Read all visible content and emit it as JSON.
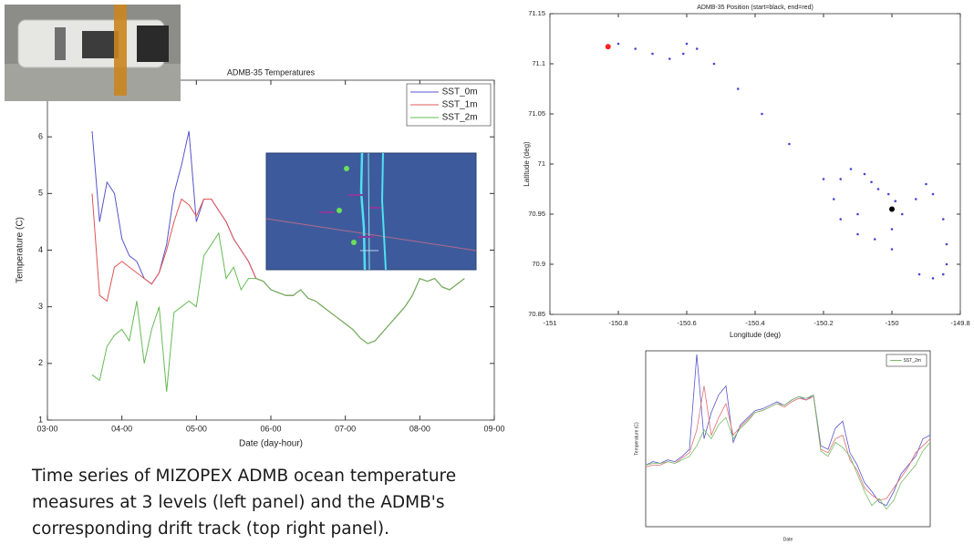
{
  "chart_data": [
    {
      "type": "line",
      "title": "ADMB-35 Temperatures",
      "xlabel": "Date (day-hour)",
      "ylabel": "Temperature (C)",
      "x": [
        3.6,
        3.7,
        3.8,
        3.9,
        4.0,
        4.1,
        4.2,
        4.3,
        4.4,
        4.5,
        4.6,
        4.7,
        4.8,
        4.9,
        5.0,
        5.1,
        5.2,
        5.3,
        5.4,
        5.5,
        5.6,
        5.7,
        5.8,
        5.9,
        6.0,
        6.1,
        6.2,
        6.3,
        6.4,
        6.5,
        6.6,
        6.7,
        6.8,
        6.9,
        7.0,
        7.1,
        7.2,
        7.3,
        7.4,
        7.5,
        7.6,
        7.7,
        7.8,
        7.9,
        8.0,
        8.1,
        8.2,
        8.3,
        8.4,
        8.5,
        8.6
      ],
      "series": [
        {
          "name": "SST_0m",
          "color": "#5555cc",
          "values": [
            6.1,
            4.5,
            5.2,
            5.0,
            4.2,
            3.9,
            3.8,
            3.5,
            3.4,
            3.6,
            4.1,
            5.0,
            5.5,
            6.1,
            4.5,
            4.9,
            4.9,
            4.7,
            4.5,
            4.2,
            4.0,
            3.8,
            3.5,
            3.45,
            3.3,
            3.25,
            3.2,
            3.2,
            3.3,
            3.15,
            3.1,
            3.0,
            2.9,
            2.8,
            2.7,
            2.6,
            2.45,
            2.35,
            2.4,
            2.55,
            2.7,
            2.85,
            3.0,
            3.2,
            3.5,
            3.45,
            3.5,
            3.35,
            3.3,
            3.4,
            3.5
          ]
        },
        {
          "name": "SST_1m",
          "color": "#e05555",
          "values": [
            5.0,
            3.2,
            3.1,
            3.7,
            3.8,
            3.7,
            3.6,
            3.5,
            3.4,
            3.6,
            4.0,
            4.5,
            4.9,
            4.8,
            4.6,
            4.9,
            4.9,
            4.7,
            4.5,
            4.2,
            4.0,
            3.8,
            3.5,
            3.45,
            3.3,
            3.25,
            3.2,
            3.2,
            3.3,
            3.15,
            3.1,
            3.0,
            2.9,
            2.8,
            2.7,
            2.6,
            2.45,
            2.35,
            2.4,
            2.55,
            2.7,
            2.85,
            3.0,
            3.2,
            3.5,
            3.45,
            3.5,
            3.35,
            3.3,
            3.4,
            3.5
          ]
        },
        {
          "name": "SST_2m",
          "color": "#66bb55",
          "values": [
            1.8,
            1.7,
            2.3,
            2.5,
            2.6,
            2.4,
            3.1,
            2.0,
            2.6,
            3.0,
            1.5,
            2.9,
            3.0,
            3.1,
            3.0,
            3.9,
            4.1,
            4.3,
            3.5,
            3.7,
            3.3,
            3.5,
            3.5,
            3.45,
            3.3,
            3.25,
            3.2,
            3.2,
            3.3,
            3.15,
            3.1,
            3.0,
            2.9,
            2.8,
            2.7,
            2.6,
            2.45,
            2.35,
            2.4,
            2.55,
            2.7,
            2.85,
            3.0,
            3.2,
            3.5,
            3.45,
            3.5,
            3.35,
            3.3,
            3.4,
            3.5
          ]
        }
      ],
      "xlim": [
        3,
        9
      ],
      "xticks": [
        {
          "value": 3,
          "label": "03-00"
        },
        {
          "value": 4,
          "label": "04-00"
        },
        {
          "value": 5,
          "label": "05-00"
        },
        {
          "value": 6,
          "label": "06-00"
        },
        {
          "value": 7,
          "label": "07-00"
        },
        {
          "value": 8,
          "label": "08-00"
        },
        {
          "value": 9,
          "label": "09-00"
        }
      ],
      "ylim": [
        1,
        7
      ],
      "yticks": [
        1,
        2,
        3,
        4,
        5,
        6
      ],
      "legend": "upper right"
    },
    {
      "type": "scatter",
      "title": "ADMB-35 Position (start=black, end=red)",
      "xlabel": "Longitude (deg)",
      "ylabel": "Latitude (deg)",
      "x": [
        -150.0,
        -149.99,
        -150.01,
        -150.04,
        -150.06,
        -150.08,
        -150.12,
        -150.15,
        -150.17,
        -150.15,
        -150.1,
        -150.05,
        -150.0,
        -149.97,
        -149.93,
        -149.9,
        -149.88,
        -149.85,
        -149.84,
        -149.84,
        -149.85,
        -149.88,
        -149.92,
        -150.0,
        -150.1,
        -150.2,
        -150.3,
        -150.38,
        -150.45,
        -150.52,
        -150.57,
        -150.6,
        -150.61,
        -150.65,
        -150.7,
        -150.75,
        -150.8,
        -150.83
      ],
      "values": [
        70.955,
        70.963,
        70.97,
        70.975,
        70.982,
        70.99,
        70.995,
        70.985,
        70.965,
        70.945,
        70.93,
        70.925,
        70.935,
        70.95,
        70.965,
        70.98,
        70.97,
        70.945,
        70.92,
        70.9,
        70.89,
        70.886,
        70.89,
        70.915,
        70.95,
        70.985,
        71.02,
        71.05,
        71.075,
        71.1,
        71.115,
        71.12,
        71.11,
        71.105,
        71.11,
        71.115,
        71.12,
        71.117
      ],
      "color": "#4646d2",
      "start_color": "#000000",
      "end_color": "#ff2020",
      "xlim": [
        -151,
        -149.8
      ],
      "xticks": [
        -151,
        -150.8,
        -150.6,
        -150.4,
        -150.2,
        -150,
        -149.8
      ],
      "ylim": [
        70.85,
        71.15
      ],
      "yticks": [
        70.85,
        70.9,
        70.95,
        71,
        71.05,
        71.1,
        71.15
      ]
    },
    {
      "type": "line",
      "xlabel": "Date",
      "ylabel": "Temperature (C)",
      "x": [
        0,
        1,
        2,
        3,
        4,
        5,
        6,
        7,
        8,
        9,
        10,
        11,
        12,
        13,
        14,
        15,
        16,
        17,
        18,
        19,
        20,
        21,
        22,
        23,
        24,
        25,
        26,
        27,
        28,
        29,
        30,
        31,
        32,
        33,
        34,
        35,
        36,
        37,
        38,
        39
      ],
      "series": [
        {
          "color": "#5555cc",
          "values": [
            7.5,
            7.7,
            7.6,
            7.8,
            7.7,
            8.0,
            8.4,
            13.8,
            9.0,
            10.5,
            11.5,
            12.0,
            8.8,
            9.8,
            10.2,
            10.6,
            10.7,
            10.9,
            11.1,
            10.9,
            11.2,
            11.4,
            11.2,
            11.5,
            8.6,
            8.4,
            9.6,
            10.0,
            8.2,
            7.5,
            6.5,
            6.0,
            5.4,
            5.2,
            6.0,
            7.0,
            7.5,
            8.0,
            9.0,
            9.2
          ]
        },
        {
          "color": "#e07070",
          "values": [
            7.4,
            7.5,
            7.5,
            7.7,
            7.6,
            7.9,
            8.2,
            9.5,
            12.0,
            9.2,
            10.2,
            11.0,
            9.2,
            9.7,
            10.1,
            10.5,
            10.6,
            10.8,
            11.0,
            10.8,
            11.1,
            11.3,
            11.2,
            11.4,
            8.4,
            8.2,
            9.0,
            9.2,
            7.8,
            7.2,
            6.2,
            5.8,
            5.5,
            5.6,
            6.2,
            6.8,
            7.4,
            8.2,
            8.6,
            9.0
          ]
        },
        {
          "name": "SST_2m",
          "color": "#77bb66",
          "values": [
            7.5,
            7.6,
            7.6,
            7.7,
            7.6,
            7.8,
            8.0,
            8.6,
            9.5,
            9.0,
            9.8,
            10.2,
            9.0,
            9.6,
            10.0,
            10.5,
            10.6,
            10.8,
            11.0,
            10.9,
            11.2,
            11.4,
            11.3,
            11.5,
            8.3,
            8.0,
            8.8,
            8.5,
            8.0,
            7.0,
            6.0,
            5.2,
            5.6,
            5.0,
            5.5,
            6.5,
            7.0,
            7.5,
            8.3,
            8.8
          ]
        }
      ],
      "xlim": [
        0,
        39
      ],
      "ylim": [
        4,
        14
      ],
      "legend": "upper right"
    }
  ],
  "caption": {
    "lines": [
      "Time series of MIZOPEX ADMB ocean temperature",
      "measures at 3 levels (left panel) and the ADMB's",
      "corresponding drift track (top right panel)."
    ]
  }
}
